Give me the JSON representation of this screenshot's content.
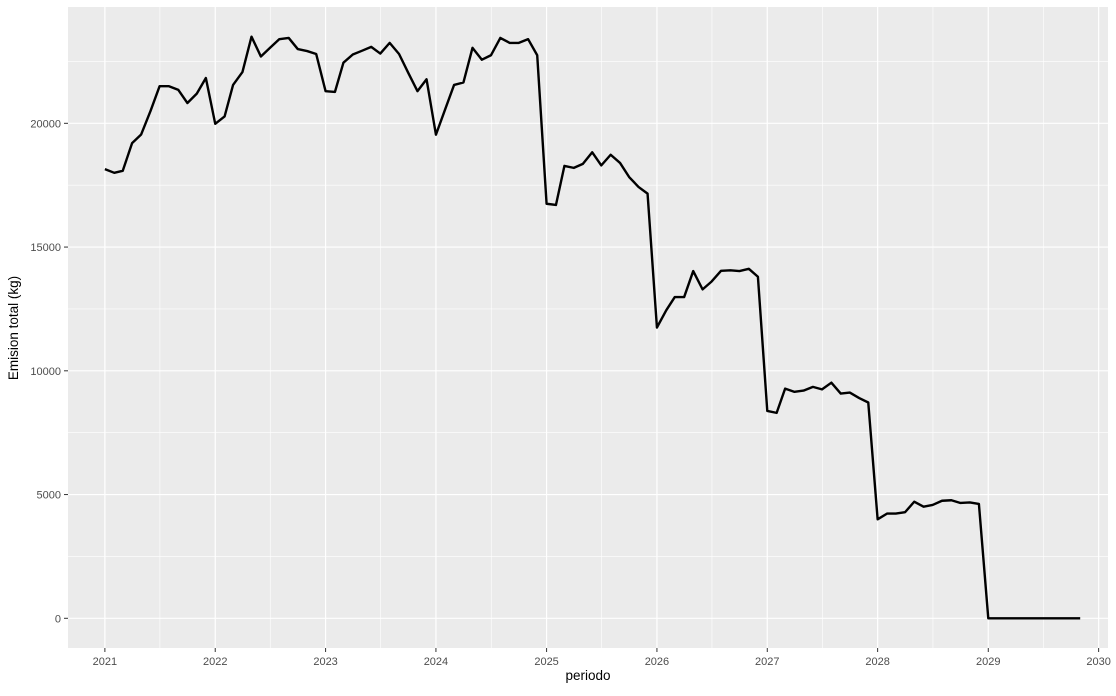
{
  "chart_data": {
    "type": "line",
    "title": "",
    "xlabel": "periodo",
    "ylabel": "Emision total (kg)",
    "x_axis": "date",
    "xlim": [
      "2020-09-01",
      "2030-02-01"
    ],
    "ylim": [
      -1200,
      24700
    ],
    "x_ticks": [
      "2021-01-01",
      "2022-01-01",
      "2023-01-01",
      "2024-01-01",
      "2025-01-01",
      "2026-01-01",
      "2027-01-01",
      "2028-01-01",
      "2029-01-01",
      "2030-01-01"
    ],
    "x_tick_labels": [
      "2021",
      "2022",
      "2023",
      "2024",
      "2025",
      "2026",
      "2027",
      "2028",
      "2029",
      "2030"
    ],
    "y_ticks": [
      0,
      5000,
      10000,
      15000,
      20000
    ],
    "y_tick_labels": [
      "0",
      "5000",
      "10000",
      "15000",
      "20000"
    ],
    "grid": true,
    "legend": "none",
    "colors": {
      "panel": "#ebebeb",
      "grid": "#ffffff",
      "line": "#000000",
      "tick_text": "#4d4d4d",
      "tick_mark": "#333333"
    },
    "series": [
      {
        "x": [
          "2021-01-01",
          "2021-02-01",
          "2021-03-01",
          "2021-04-01",
          "2021-05-01",
          "2021-06-01",
          "2021-07-01",
          "2021-08-01",
          "2021-09-01",
          "2021-10-01",
          "2021-11-01",
          "2021-12-01",
          "2022-01-01",
          "2022-02-01",
          "2022-03-01",
          "2022-04-01",
          "2022-05-01",
          "2022-06-01",
          "2022-07-01",
          "2022-08-01",
          "2022-09-01",
          "2022-10-01",
          "2022-11-01",
          "2022-12-01",
          "2023-01-01",
          "2023-02-01",
          "2023-03-01",
          "2023-04-01",
          "2023-05-01",
          "2023-06-01",
          "2023-07-01",
          "2023-08-01",
          "2023-09-01",
          "2023-10-01",
          "2023-11-01",
          "2023-12-01",
          "2024-01-01",
          "2024-02-01",
          "2024-03-01",
          "2024-04-01",
          "2024-05-01",
          "2024-06-01",
          "2024-07-01",
          "2024-08-01",
          "2024-09-01",
          "2024-10-01",
          "2024-11-01",
          "2024-12-01",
          "2025-01-01",
          "2025-02-01",
          "2025-03-01",
          "2025-04-01",
          "2025-05-01",
          "2025-06-01",
          "2025-07-01",
          "2025-08-01",
          "2025-09-01",
          "2025-10-01",
          "2025-11-01",
          "2025-12-01",
          "2026-01-01",
          "2026-02-01",
          "2026-03-01",
          "2026-04-01",
          "2026-05-01",
          "2026-06-01",
          "2026-07-01",
          "2026-08-01",
          "2026-09-01",
          "2026-10-01",
          "2026-11-01",
          "2026-12-01",
          "2027-01-01",
          "2027-02-01",
          "2027-03-01",
          "2027-04-01",
          "2027-05-01",
          "2027-06-01",
          "2027-07-01",
          "2027-08-01",
          "2027-09-01",
          "2027-10-01",
          "2027-11-01",
          "2027-12-01",
          "2028-01-01",
          "2028-02-01",
          "2028-03-01",
          "2028-04-01",
          "2028-05-01",
          "2028-06-01",
          "2028-07-01",
          "2028-08-01",
          "2028-09-01",
          "2028-10-01",
          "2028-11-01",
          "2028-12-01",
          "2029-01-01",
          "2029-02-01",
          "2029-03-01",
          "2029-04-01",
          "2029-05-01",
          "2029-06-01",
          "2029-07-01",
          "2029-08-01",
          "2029-09-01",
          "2029-10-01",
          "2029-11-01"
        ],
        "y": [
          18150,
          18000,
          18080,
          19200,
          19550,
          20500,
          21500,
          21500,
          21350,
          20820,
          21200,
          21830,
          19980,
          20280,
          21550,
          22070,
          23500,
          22700,
          23050,
          23400,
          23450,
          23000,
          22920,
          22800,
          21300,
          21270,
          22450,
          22780,
          22930,
          23090,
          22820,
          23250,
          22800,
          22050,
          21300,
          21780,
          19540,
          20580,
          21550,
          21650,
          23050,
          22570,
          22750,
          23450,
          23250,
          23250,
          23400,
          22750,
          16750,
          16700,
          18280,
          18200,
          18360,
          18830,
          18300,
          18730,
          18400,
          17830,
          17430,
          17160,
          11750,
          12450,
          12980,
          12980,
          14030,
          13290,
          13610,
          14040,
          14060,
          14030,
          14120,
          13800,
          8380,
          8300,
          9280,
          9150,
          9200,
          9350,
          9250,
          9520,
          9080,
          9120,
          8900,
          8720,
          4000,
          4230,
          4230,
          4290,
          4710,
          4510,
          4580,
          4750,
          4770,
          4660,
          4680,
          4620,
          0,
          0,
          0,
          0,
          0,
          0,
          0,
          0,
          0,
          0,
          0
        ]
      }
    ]
  }
}
